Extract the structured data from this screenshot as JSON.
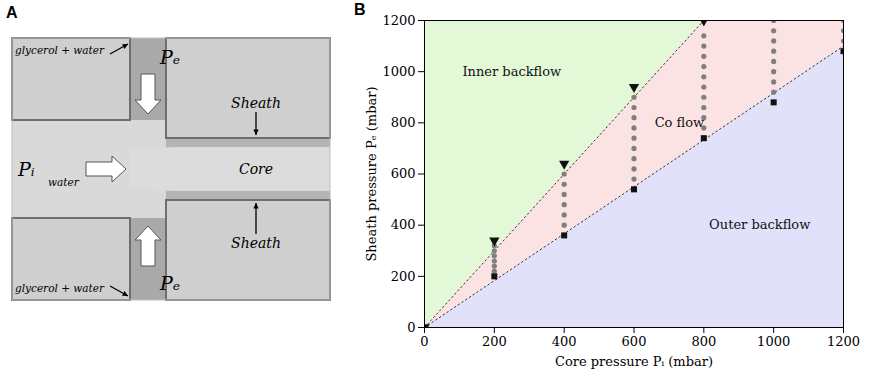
{
  "panel_a": {
    "letter": "A",
    "top_inlet": {
      "fluid": "glycerol + water",
      "pressure": "Pₑ"
    },
    "bottom_inlet": {
      "fluid": "glycerol + water",
      "pressure": "Pₑ"
    },
    "left_inlet": {
      "fluid": "water",
      "pressure": "Pᵢ"
    },
    "outlet": {
      "upper": "Sheath",
      "middle": "Core",
      "lower": "Sheath"
    }
  },
  "chart_data": {
    "type": "scatter",
    "panel_label": "B",
    "x_label": "Core pressure Pᵢ (mbar)",
    "y_label": "Sheath pressure Pₑ (mbar)",
    "xlim": [
      0,
      1200
    ],
    "xticks": [
      0,
      200,
      400,
      600,
      800,
      1000,
      1200
    ],
    "ylim": [
      0,
      1200
    ],
    "yticks": [
      0,
      200,
      400,
      600,
      800,
      1000,
      1200
    ],
    "regions": [
      {
        "label": "Inner backflow",
        "color": "#e3f8d6",
        "x": [
          0,
          800
        ],
        "y1": [
          0,
          1200
        ],
        "y2": [
          1200,
          1200
        ],
        "label_x": 250,
        "label_y": 1000
      },
      {
        "label": "Co flow",
        "color": "#fce3e3",
        "x": [
          0,
          800,
          1200
        ],
        "y1": [
          0,
          733,
          1100
        ],
        "y2": [
          0,
          1200,
          1200
        ],
        "label_x": 730,
        "label_y": 800
      },
      {
        "label": "Outer backflow",
        "color": "#e1e2f9",
        "x": [
          0,
          1200
        ],
        "y1": [
          0,
          0
        ],
        "y2": [
          0,
          1100
        ],
        "label_x": 960,
        "label_y": 400
      }
    ],
    "boundaries": [
      {
        "x": [
          0,
          800
        ],
        "y": [
          0,
          1200
        ],
        "line_style": "dotted"
      },
      {
        "x": [
          0,
          1200
        ],
        "y": [
          0,
          1100
        ],
        "line_style": "dotted"
      }
    ],
    "series": [
      {
        "marker": "circle",
        "color": "#7f7f7f",
        "x": [
          200,
          200,
          200,
          200,
          200,
          200,
          400,
          400,
          400,
          400,
          400,
          400,
          600,
          600,
          600,
          600,
          600,
          600,
          600,
          600,
          600,
          800,
          800,
          800,
          800,
          800,
          800,
          800,
          800,
          800,
          800,
          1000,
          1000,
          1000,
          1000,
          1000,
          1000,
          1000,
          1000,
          1200,
          1200,
          1200
        ],
        "y": [
          220,
          240,
          260,
          280,
          300,
          320,
          400,
          440,
          480,
          520,
          560,
          600,
          580,
          620,
          660,
          700,
          740,
          780,
          820,
          860,
          900,
          780,
          820,
          860,
          900,
          940,
          980,
          1020,
          1060,
          1100,
          1140,
          920,
          960,
          1000,
          1040,
          1080,
          1120,
          1160,
          1200,
          1120,
          1160,
          1200
        ]
      },
      {
        "marker": "square",
        "color": "#111111",
        "x": [
          0,
          200,
          400,
          600,
          800,
          1000,
          1200
        ],
        "y": [
          0,
          200,
          360,
          540,
          740,
          880,
          1080
        ]
      },
      {
        "marker": "triangle-down",
        "color": "#111111",
        "x": [
          0,
          200,
          400,
          600,
          800
        ],
        "y": [
          0,
          340,
          640,
          940,
          1200
        ]
      }
    ]
  }
}
